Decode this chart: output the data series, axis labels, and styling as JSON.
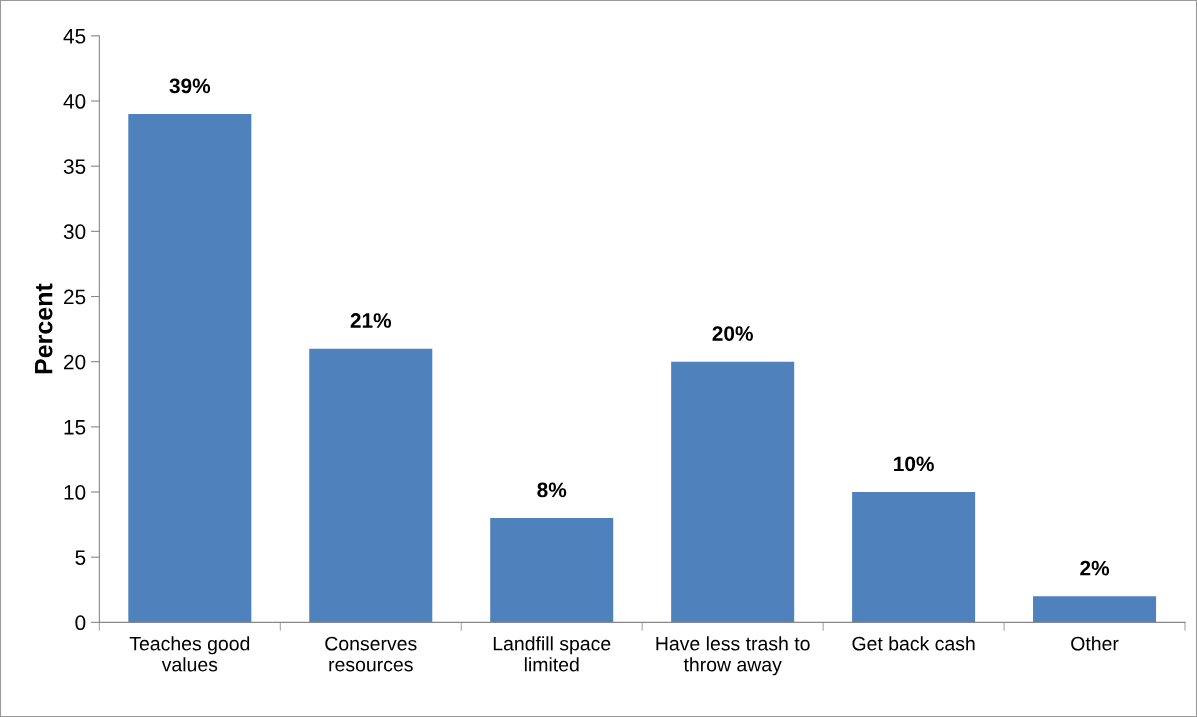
{
  "chart_data": {
    "type": "bar",
    "ylabel": "Percent",
    "categories": [
      "Teaches good\nvalues",
      "Conserves\nresources",
      "Landfill space\nlimited",
      "Have less trash to\nthrow away",
      "Get back cash",
      "Other"
    ],
    "values": [
      39,
      21,
      8,
      20,
      10,
      2
    ],
    "value_labels": [
      "39%",
      "21%",
      "8%",
      "20%",
      "10%",
      "2%"
    ],
    "color": "#4f81bd",
    "ylim": [
      0,
      45
    ],
    "yticks": [
      0,
      5,
      10,
      15,
      20,
      25,
      30,
      35,
      40,
      45
    ],
    "grid": false
  }
}
